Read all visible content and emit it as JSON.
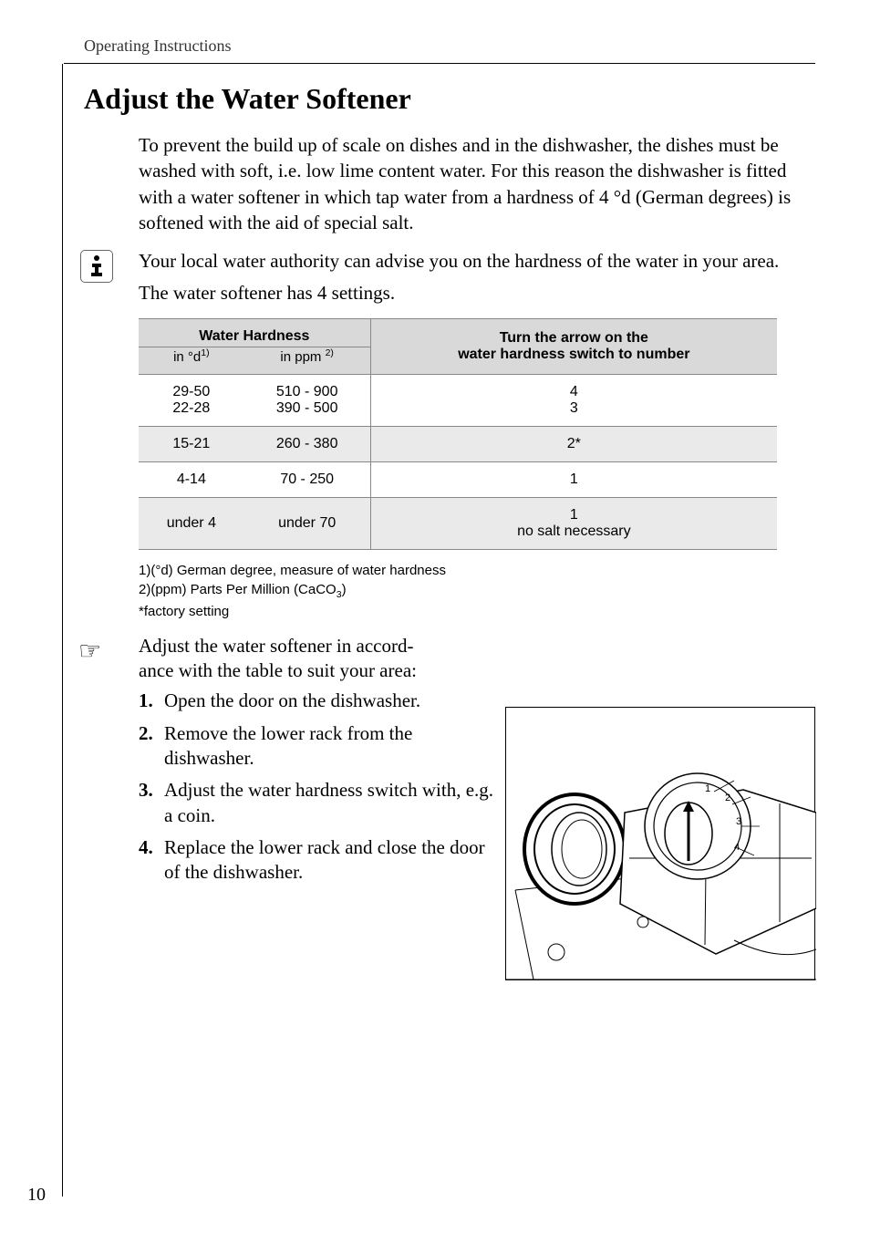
{
  "header": "Operating Instructions",
  "title": "Adjust the Water Softener",
  "intro": "To prevent the build up of scale on dishes and in the dishwasher, the dishes must be washed with soft, i.e. low lime content water. For this reason the dishwasher is fitted with a water softener in which tap water from a hardness of 4 °d (German degrees) is softened with the aid of special salt.",
  "info": {
    "line1": "Your local water authority can advise you on the hardness of the water in your area.",
    "line2": "The water softener has 4 settings."
  },
  "table": {
    "header_left": "Water Hardness",
    "header_left_sub1_pre": "in °d",
    "header_left_sub1_sup": "1)",
    "header_left_sub2_pre": "in ppm ",
    "header_left_sub2_sup": "2)",
    "header_right_l1": "Turn the arrow on the",
    "header_right_l2": "water hardness switch to number",
    "rows": [
      {
        "d": "29-50\n22-28",
        "ppm": "510 - 900\n390 - 500",
        "setting": "4\n3",
        "shade": false
      },
      {
        "d": "15-21",
        "ppm": "260 - 380",
        "setting": "2*",
        "shade": true
      },
      {
        "d": "4-14",
        "ppm": "70 - 250",
        "setting": "1",
        "shade": false
      },
      {
        "d": "under 4",
        "ppm": "under 70",
        "setting": "1\nno salt necessary",
        "shade": true
      }
    ]
  },
  "footnotes": {
    "f1": "1)(°d) German degree, measure of water hardness",
    "f2_pre": "2)(ppm) Parts Per Million (CaCO",
    "f2_sub": "3",
    "f2_post": ")",
    "f3": "*factory setting"
  },
  "instruction": "Adjust the water softener in accord-\nance with the table to suit your area:",
  "steps": [
    {
      "n": "1.",
      "t": "Open the door on the dishwasher."
    },
    {
      "n": "2.",
      "t": "Remove the lower rack from the dishwasher."
    },
    {
      "n": "3.",
      "t": "Adjust the water hardness switch with, e.g. a coin."
    },
    {
      "n": "4.",
      "t": "Replace the lower rack and close the door of the dishwasher."
    }
  ],
  "dial": {
    "n1": "1",
    "n2": "2",
    "n3": "3",
    "n4": "4"
  },
  "pagenum": "10",
  "colors": {
    "table_header_bg": "#d9d9d9",
    "table_shade_bg": "#eaeaea",
    "border": "#888888"
  }
}
